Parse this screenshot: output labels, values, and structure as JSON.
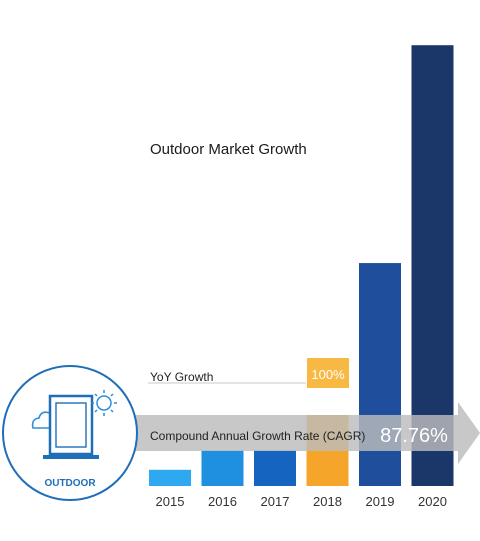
{
  "chart_data": {
    "type": "bar",
    "title": "Outdoor Market Growth",
    "categories": [
      "2015",
      "2016",
      "2017",
      "2018",
      "2019",
      "2020"
    ],
    "values": [
      1.6,
      3.5,
      3.5,
      7.0,
      22.0,
      43.5
    ],
    "ylim": [
      0,
      45
    ],
    "grid": false,
    "bar_colors": [
      "#2ea8f0",
      "#1f8fe0",
      "#1565c0",
      "#f5a52a",
      "#1f4f9c",
      "#1b3668"
    ],
    "annotations": {
      "yoy_label": "YoY Growth",
      "yoy_value": "100%",
      "cagr_label": "Compound Annual Growth Rate (CAGR)",
      "cagr_value": "87.76%"
    }
  },
  "badge": {
    "label": "OUTDOOR",
    "icons": [
      "cloud-icon",
      "display-icon",
      "sun-icon"
    ],
    "color": "#1f6fb8"
  },
  "colors": {
    "arrow": "#b9b9b9",
    "yoy_line": "#c9c9c9"
  }
}
